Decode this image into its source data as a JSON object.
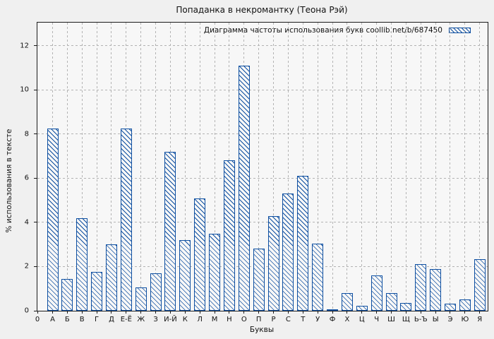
{
  "chart_data": {
    "type": "bar",
    "title": "Попаданка в некромантку (Теона Рэй)",
    "legend": {
      "label": "Диаграмма частоты использования букв coollib.net/b/687450",
      "position": "top-right-inside",
      "swatch": "blue-hatched-bar"
    },
    "xlabel": "Буквы",
    "ylabel": "% использования в тексте",
    "x_origin_tick_label": "0",
    "yticks": [
      0,
      2,
      4,
      6,
      8,
      10,
      12
    ],
    "ylim": [
      0,
      13.05
    ],
    "grid": true,
    "bar_style": "hatched-diagonal",
    "categories": [
      "А",
      "Б",
      "В",
      "Г",
      "Д",
      "Е-Ё",
      "Ж",
      "З",
      "И-Й",
      "К",
      "Л",
      "М",
      "Н",
      "О",
      "П",
      "Р",
      "С",
      "Т",
      "У",
      "Ф",
      "Х",
      "Ц",
      "Ч",
      "Ш",
      "Щ",
      "Ь-Ъ",
      "Ы",
      "Э",
      "Ю",
      "Я"
    ],
    "values": [
      8.25,
      1.45,
      4.2,
      1.75,
      3.0,
      8.25,
      1.05,
      1.7,
      7.2,
      3.2,
      5.1,
      3.5,
      6.8,
      11.1,
      2.8,
      4.3,
      5.3,
      6.1,
      3.05,
      0.07,
      0.8,
      0.22,
      1.6,
      0.8,
      0.35,
      2.1,
      1.9,
      0.32,
      0.5,
      2.35
    ],
    "colors": {
      "bar": "#0e4fa1",
      "grid": "#b3b3b3",
      "frame": "#1a1a1a",
      "background": "#f0f0f0",
      "plot_background": "#f7f7f7",
      "text": "#111111"
    }
  }
}
